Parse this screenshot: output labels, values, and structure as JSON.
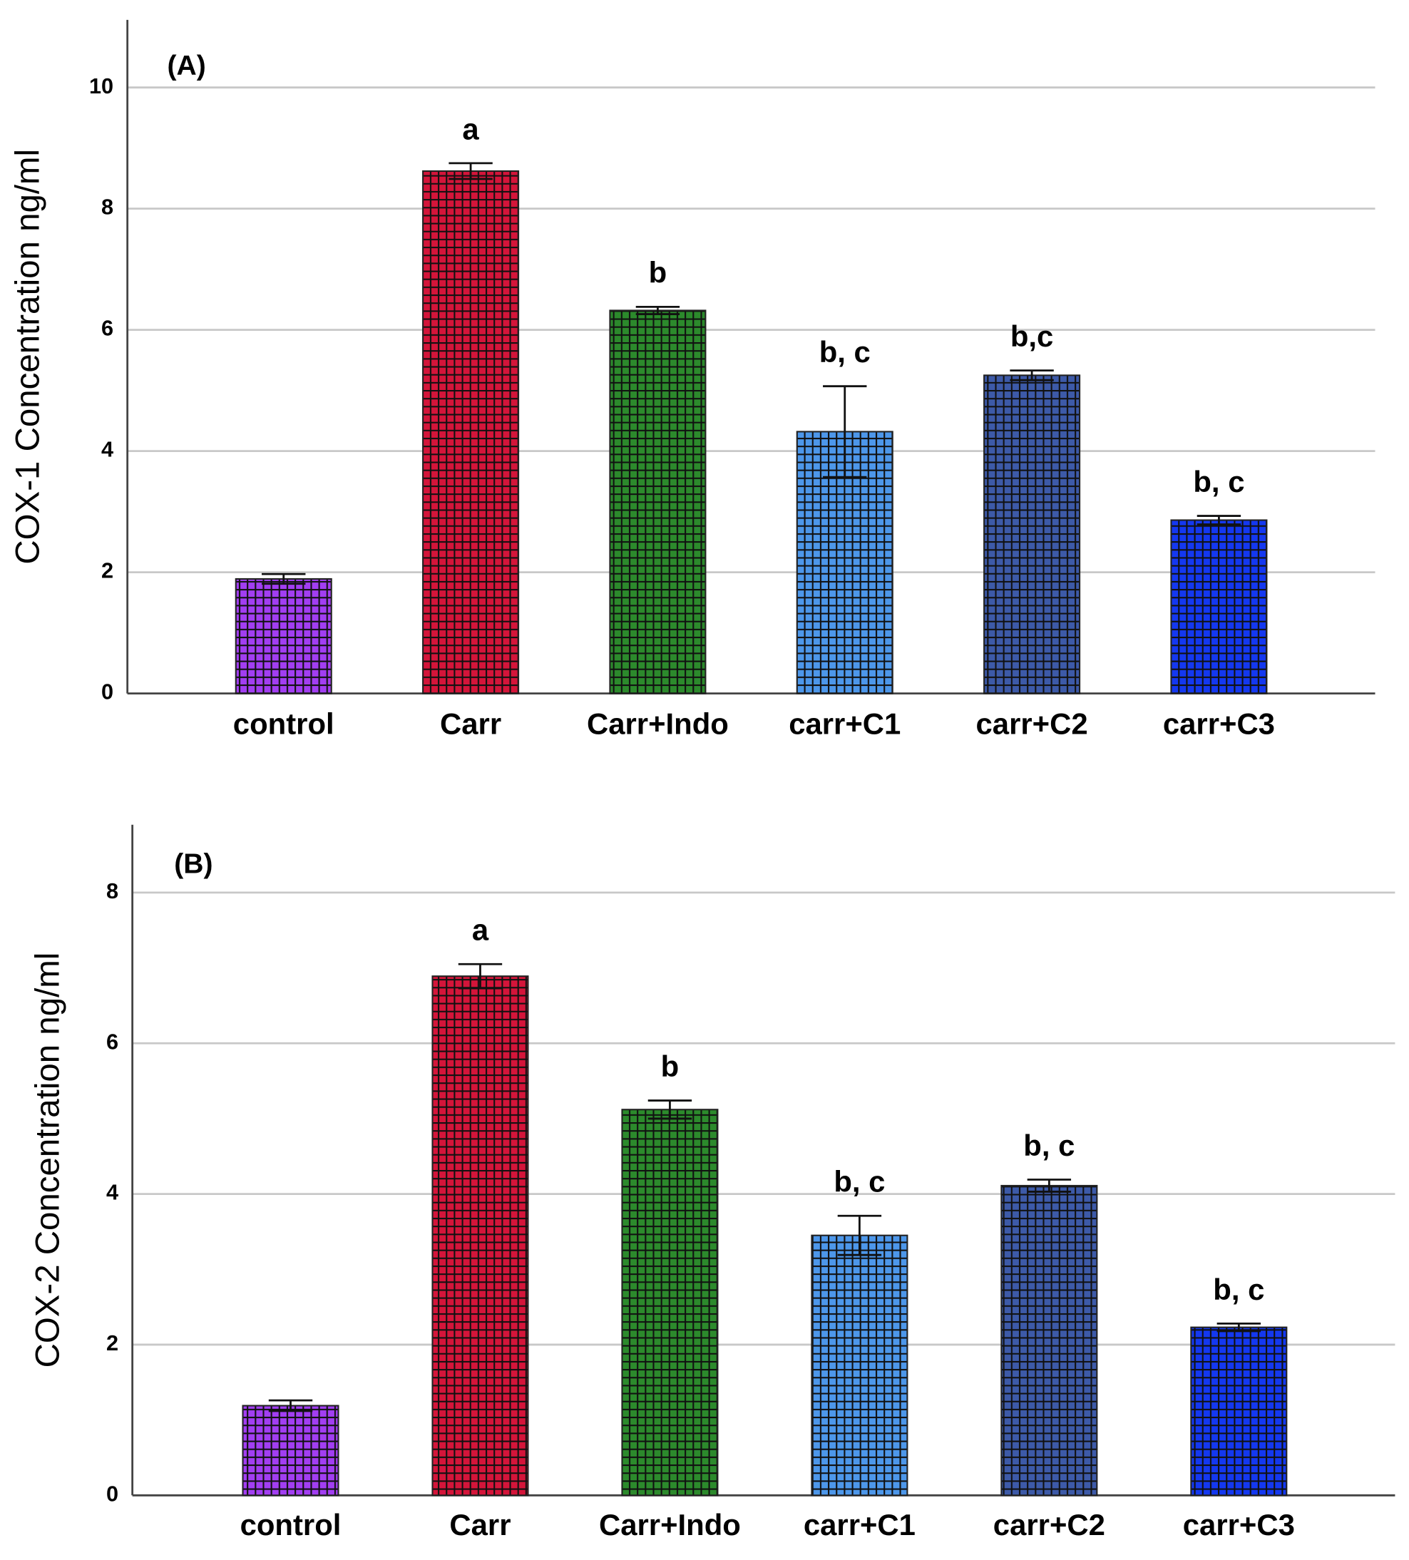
{
  "chart_data": [
    {
      "type": "bar",
      "panel_label": "(A)",
      "y_label": "COX-1 Concentration ng/ml",
      "categories": [
        "control",
        "Carr",
        "Carr+Indo",
        "carr+C1",
        "carr+C2",
        "carr+C3"
      ],
      "values": [
        1.89,
        8.62,
        6.32,
        4.32,
        5.25,
        2.86
      ],
      "errors": [
        0.08,
        0.13,
        0.06,
        0.75,
        0.08,
        0.07
      ],
      "annotations": [
        null,
        "a",
        "b",
        "b, c",
        "b,c",
        "b, c"
      ],
      "colors": [
        "#a23ef2",
        "#d4153a",
        "#2c8a2c",
        "#4d97ea",
        "#3d5aa8",
        "#1438f0"
      ],
      "ylim": [
        0,
        11
      ],
      "yticks": [
        0,
        2,
        4,
        6,
        8,
        10
      ],
      "grid": true
    },
    {
      "type": "bar",
      "panel_label": "(B)",
      "y_label": "COX-2 Concentration ng/ml",
      "categories": [
        "control",
        "Carr",
        "Carr+Indo",
        "carr+C1",
        "carr+C2",
        "carr+C3"
      ],
      "values": [
        1.19,
        6.89,
        5.12,
        3.45,
        4.11,
        2.23
      ],
      "errors": [
        0.07,
        0.16,
        0.12,
        0.26,
        0.08,
        0.05
      ],
      "annotations": [
        null,
        "a",
        "b",
        "b, c",
        "b, c",
        "b, c"
      ],
      "colors": [
        "#a23ef2",
        "#d4153a",
        "#2c8a2c",
        "#4d97ea",
        "#3d5aa8",
        "#1438f0"
      ],
      "ylim": [
        0,
        8.9
      ],
      "yticks": [
        0,
        2,
        4,
        6,
        8
      ],
      "grid": true
    }
  ]
}
